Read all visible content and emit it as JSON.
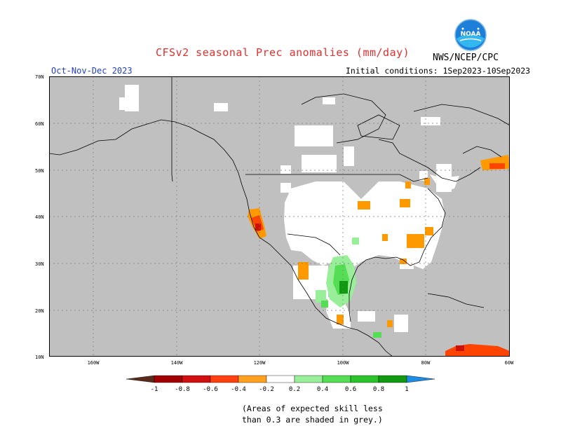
{
  "header": {
    "title": "CFSv2 seasonal Prec anomalies (mm/day)",
    "period": "Oct-Nov-Dec 2023",
    "initial_conditions": "Initial conditions:  1Sep2023-10Sep2023",
    "agency": "NWS/NCEP/CPC",
    "logo_icon": "noaa-logo-icon"
  },
  "map": {
    "region": "North America",
    "lat_labels": [
      "70N",
      "60N",
      "50N",
      "40N",
      "30N",
      "20N",
      "10N"
    ],
    "lon_labels": [
      "160W",
      "140W",
      "120W",
      "100W",
      "80W",
      "60W"
    ],
    "colors": {
      "skill_grey": "#c0c0c0",
      "no_signal": "#ffffff",
      "dry_light": "#ff9900",
      "dry_mid": "#ff4400",
      "dry_strong": "#cc1100",
      "wet_light": "#99ee99",
      "wet_mid": "#55dd55",
      "wet_strong": "#119911"
    }
  },
  "legend": {
    "values": [
      "-1",
      "-0.8",
      "-0.6",
      "-0.4",
      "-0.2",
      "0.2",
      "0.4",
      "0.6",
      "0.8",
      "1"
    ],
    "colors": [
      "#5a2b1a",
      "#a00000",
      "#d01010",
      "#ff4010",
      "#ffa020",
      "#ffffff",
      "#99ee99",
      "#55dd55",
      "#2ac42a",
      "#119911",
      "#1e8ce0"
    ]
  },
  "note": {
    "line1": "(Areas of expected skill less",
    "line2": "than 0.3 are shaded in grey.)"
  }
}
